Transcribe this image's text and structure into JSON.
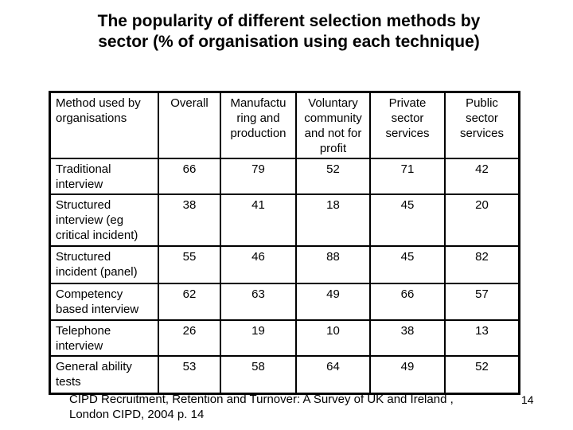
{
  "title": {
    "line1": "The popularity of different selection methods by",
    "line2": "sector (% of organisation using each technique)"
  },
  "table": {
    "header": {
      "method": "Method used by\norganisations",
      "cols": [
        "Overall",
        "Manufactu\nring and\nproduction",
        "Voluntary\ncommunity\nand not for\nprofit",
        "Private\nsector\nservices",
        "Public\nsector\nservices"
      ]
    },
    "rows": [
      {
        "method": "Traditional\ninterview",
        "values": [
          66,
          79,
          52,
          71,
          42
        ]
      },
      {
        "method": "Structured\ninterview (eg\ncritical incident)",
        "values": [
          38,
          41,
          18,
          45,
          20
        ]
      },
      {
        "method": "Structured\nincident (panel)",
        "values": [
          55,
          46,
          88,
          45,
          82
        ]
      },
      {
        "method": "Competency\nbased interview",
        "values": [
          62,
          63,
          49,
          66,
          57
        ]
      },
      {
        "method": "Telephone\ninterview",
        "values": [
          26,
          19,
          10,
          38,
          13
        ]
      },
      {
        "method": "General ability\ntests",
        "values": [
          53,
          58,
          64,
          49,
          52
        ]
      }
    ]
  },
  "footer": {
    "citation": "CIPD Recruitment, Retention and Turnover: A Survey of UK and Ireland ,\nLondon CIPD, 2004 p. 14",
    "page_number": "14"
  },
  "colors": {
    "background": "#ffffff",
    "text": "#000000",
    "border": "#000000"
  }
}
